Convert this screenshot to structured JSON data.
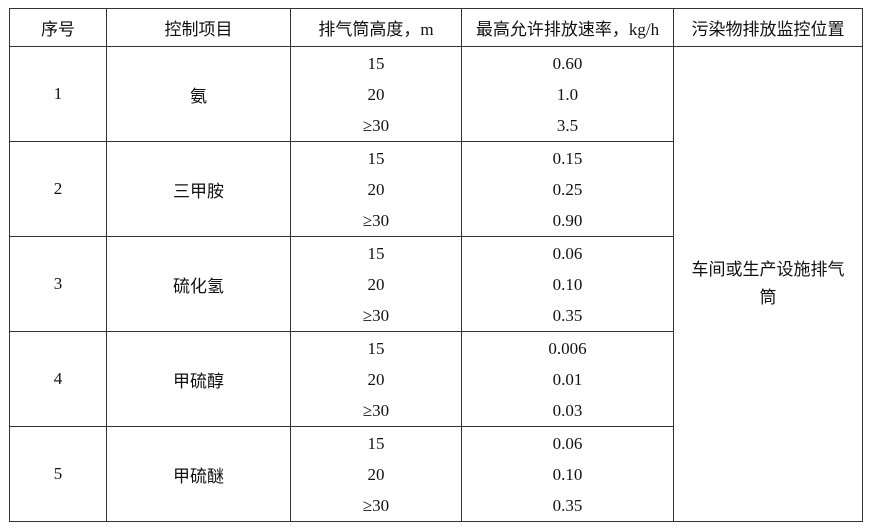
{
  "headers": [
    "序号",
    "控制项目",
    "排气筒高度，m",
    "最高允许排放速率，kg/h",
    "污染物排放监控位置"
  ],
  "rows": [
    {
      "no": "1",
      "item": "氨",
      "heights": [
        "15",
        "20",
        "≥30"
      ],
      "rates": [
        "0.60",
        "1.0",
        "3.5"
      ]
    },
    {
      "no": "2",
      "item": "三甲胺",
      "heights": [
        "15",
        "20",
        "≥30"
      ],
      "rates": [
        "0.15",
        "0.25",
        "0.90"
      ]
    },
    {
      "no": "3",
      "item": "硫化氢",
      "heights": [
        "15",
        "20",
        "≥30"
      ],
      "rates": [
        "0.06",
        "0.10",
        "0.35"
      ]
    },
    {
      "no": "4",
      "item": "甲硫醇",
      "heights": [
        "15",
        "20",
        "≥30"
      ],
      "rates": [
        "0.006",
        "0.01",
        "0.03"
      ]
    },
    {
      "no": "5",
      "item": "甲硫醚",
      "heights": [
        "15",
        "20",
        "≥30"
      ],
      "rates": [
        "0.06",
        "0.10",
        "0.35"
      ]
    }
  ],
  "monitoring_location": "车间或生产设施排气筒"
}
